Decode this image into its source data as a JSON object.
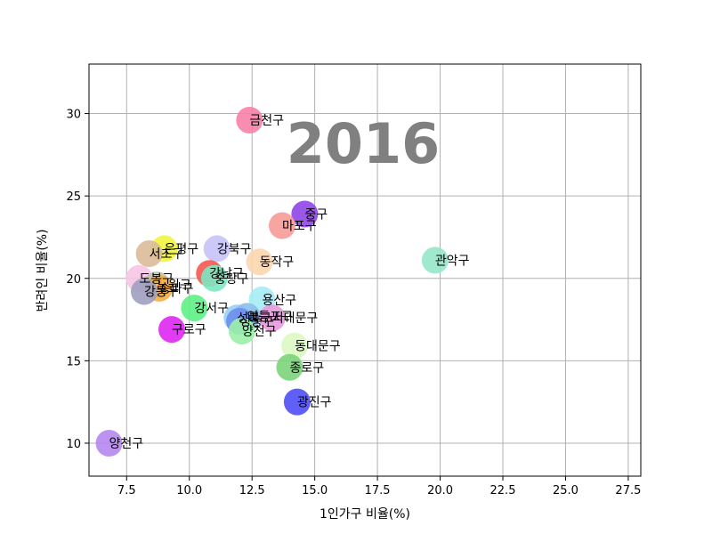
{
  "chart_data": {
    "type": "scatter",
    "annotation": "2016",
    "xlabel": "1인가구 비율(%)",
    "ylabel": "반려인 비율(%)",
    "xlim": [
      6.0,
      28.0
    ],
    "ylim": [
      8.0,
      33.0
    ],
    "x_ticks": [
      7.5,
      10.0,
      12.5,
      15.0,
      17.5,
      20.0,
      22.5,
      25.0,
      27.5
    ],
    "x_tick_labels": [
      "7.5",
      "10.0",
      "12.5",
      "15.0",
      "17.5",
      "20.0",
      "22.5",
      "25.0",
      "27.5"
    ],
    "y_ticks": [
      10,
      15,
      20,
      25,
      30
    ],
    "y_tick_labels": [
      "10",
      "15",
      "20",
      "25",
      "30"
    ],
    "grid": true,
    "points": [
      {
        "label": "금천구",
        "x": 12.4,
        "y": 29.6,
        "color": "#f77fa8"
      },
      {
        "label": "중구",
        "x": 14.6,
        "y": 23.9,
        "color": "#8f45e8"
      },
      {
        "label": "마포구",
        "x": 13.7,
        "y": 23.2,
        "color": "#f79a96"
      },
      {
        "label": "관악구",
        "x": 19.8,
        "y": 21.1,
        "color": "#96e6c9"
      },
      {
        "label": "동작구",
        "x": 12.8,
        "y": 21.0,
        "color": "#fcd6b0"
      },
      {
        "label": "강북구",
        "x": 11.1,
        "y": 21.8,
        "color": "#c6c2f7"
      },
      {
        "label": "은평구",
        "x": 9.0,
        "y": 21.8,
        "color": "#f2f53d"
      },
      {
        "label": "서초구",
        "x": 8.4,
        "y": 21.5,
        "color": "#dcbb99"
      },
      {
        "label": "강남구",
        "x": 10.8,
        "y": 20.3,
        "color": "#f7564f"
      },
      {
        "label": "중랑구",
        "x": 11.0,
        "y": 20.0,
        "color": "#7ce8c2"
      },
      {
        "label": "도봉구",
        "x": 8.0,
        "y": 20.0,
        "color": "#f7c5e6"
      },
      {
        "label": "노원구",
        "x": 8.7,
        "y": 19.6,
        "color": "#bfc7a8"
      },
      {
        "label": "송파구",
        "x": 8.8,
        "y": 19.4,
        "color": "#f7ad45"
      },
      {
        "label": "강동구",
        "x": 8.2,
        "y": 19.2,
        "color": "#9da0c1"
      },
      {
        "label": "용산구",
        "x": 12.9,
        "y": 18.7,
        "color": "#a7ecf5"
      },
      {
        "label": "강서구",
        "x": 10.2,
        "y": 18.2,
        "color": "#5ef084"
      },
      {
        "label": "성북구",
        "x": 11.9,
        "y": 17.6,
        "color": "#97d0f3"
      },
      {
        "label": "서대문구",
        "x": 13.3,
        "y": 17.6,
        "color": "#e899dd"
      },
      {
        "label": "영등포구",
        "x": 12.3,
        "y": 17.7,
        "color": "#8bbef0"
      },
      {
        "label": "성동구",
        "x": 12.0,
        "y": 17.4,
        "color": "#6d8ef0"
      },
      {
        "label": "양천구",
        "x": 12.1,
        "y": 16.8,
        "color": "#9bf0a9"
      },
      {
        "label": "구로구",
        "x": 9.3,
        "y": 16.9,
        "color": "#de26f2"
      },
      {
        "label": "동대문구",
        "x": 14.2,
        "y": 15.9,
        "color": "#dcfac2"
      },
      {
        "label": "종로구",
        "x": 14.0,
        "y": 14.6,
        "color": "#7bd47b"
      },
      {
        "label": "광진구",
        "x": 14.3,
        "y": 12.5,
        "color": "#4f4ff7"
      },
      {
        "label": "양천구",
        "x": 6.8,
        "y": 10.0,
        "color": "#b687f0"
      }
    ]
  }
}
